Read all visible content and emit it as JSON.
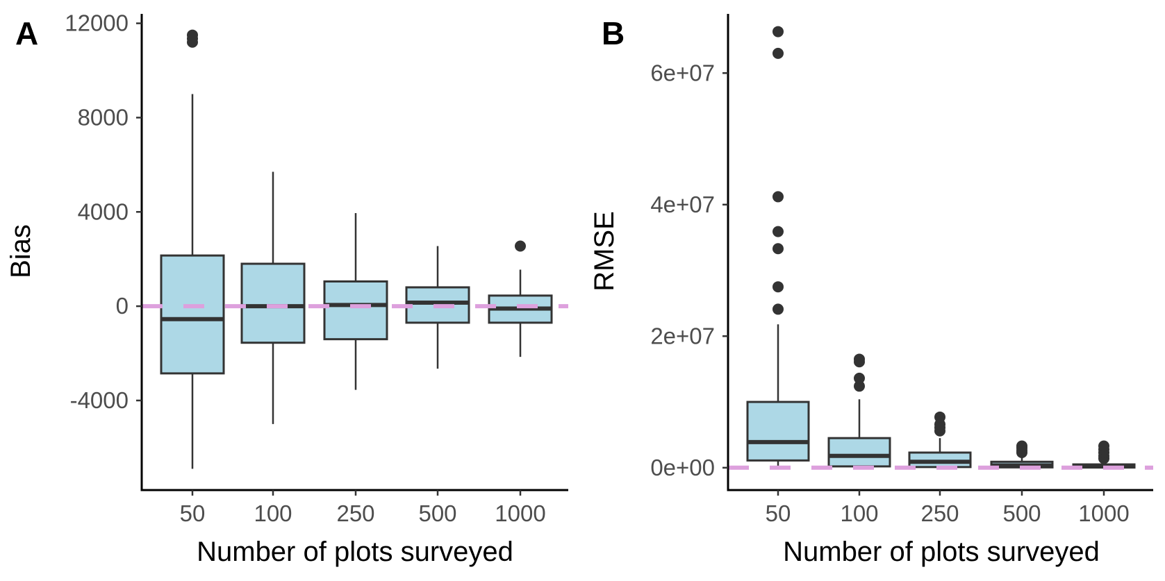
{
  "chart_data": [
    {
      "type": "boxplot",
      "panel_label": "A",
      "xlabel": "Number of plots surveyed",
      "ylabel": "Bias",
      "categories": [
        "50",
        "100",
        "250",
        "500",
        "1000"
      ],
      "y_ticks": [
        -4000,
        0,
        4000,
        8000,
        12000
      ],
      "y_tick_labels": [
        "-4000",
        "0",
        "4000",
        "8000",
        "12000"
      ],
      "ylim": [
        -7800,
        12400
      ],
      "reference_line": 0,
      "boxes": [
        {
          "category": "50",
          "whisker_low": -6900,
          "q1": -2850,
          "median": -550,
          "q3": 2150,
          "whisker_high": 9000,
          "outliers": [
            11200,
            11350,
            11500
          ]
        },
        {
          "category": "100",
          "whisker_low": -5000,
          "q1": -1550,
          "median": 0,
          "q3": 1800,
          "whisker_high": 5700,
          "outliers": []
        },
        {
          "category": "250",
          "whisker_low": -3550,
          "q1": -1400,
          "median": 50,
          "q3": 1050,
          "whisker_high": 3950,
          "outliers": []
        },
        {
          "category": "500",
          "whisker_low": -2650,
          "q1": -700,
          "median": 150,
          "q3": 800,
          "whisker_high": 2550,
          "outliers": []
        },
        {
          "category": "1000",
          "whisker_low": -2150,
          "q1": -700,
          "median": -100,
          "q3": 450,
          "whisker_high": 1550,
          "outliers": [
            2550
          ]
        }
      ]
    },
    {
      "type": "boxplot",
      "panel_label": "B",
      "xlabel": "Number of plots surveyed",
      "ylabel": "RMSE",
      "categories": [
        "50",
        "100",
        "250",
        "500",
        "1000"
      ],
      "y_ticks": [
        0,
        20000000,
        40000000,
        60000000
      ],
      "y_tick_labels": [
        "0e+00",
        "2e+07",
        "4e+07",
        "6e+07"
      ],
      "ylim": [
        -3400000,
        69000000
      ],
      "reference_line": 0,
      "boxes": [
        {
          "category": "50",
          "whisker_low": 0,
          "q1": 1100000,
          "median": 3900000,
          "q3": 10000000,
          "whisker_high": 21800000,
          "outliers": [
            24100000,
            27500000,
            33300000,
            35900000,
            41200000,
            63000000,
            66300000
          ]
        },
        {
          "category": "100",
          "whisker_low": 0,
          "q1": 200000,
          "median": 1800000,
          "q3": 4500000,
          "whisker_high": 10400000,
          "outliers": [
            12400000,
            13600000,
            16100000,
            16500000
          ]
        },
        {
          "category": "250",
          "whisker_low": 0,
          "q1": 100000,
          "median": 900000,
          "q3": 2300000,
          "whisker_high": 4500000,
          "outliers": [
            5600000,
            6100000,
            6600000,
            7700000
          ]
        },
        {
          "category": "500",
          "whisker_low": 0,
          "q1": 50000,
          "median": 350000,
          "q3": 900000,
          "whisker_high": 2000000,
          "outliers": [
            2300000,
            2600000,
            3000000,
            3300000
          ]
        },
        {
          "category": "1000",
          "whisker_low": 0,
          "q1": 30000,
          "median": 200000,
          "q3": 500000,
          "whisker_high": 1000000,
          "outliers": [
            1400000,
            1800000,
            2300000,
            2800000,
            3300000
          ]
        }
      ]
    }
  ],
  "colors": {
    "box_fill": "#add8e6",
    "box_line": "#333333",
    "reference_line": "#dda0dd",
    "axis": "#000000",
    "tick_text": "#4d4d4d"
  }
}
